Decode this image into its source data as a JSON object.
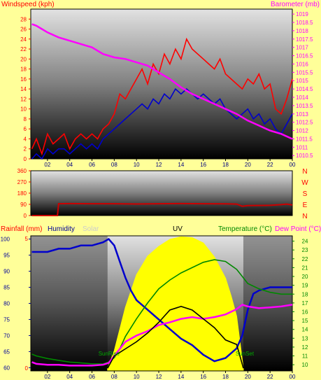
{
  "chart_data": [
    {
      "type": "line",
      "title": "",
      "title_color": "#ffff00",
      "left_label": "Windspeed (kph)",
      "right_label": "Barometer (mb)",
      "x_ticks": [
        "02",
        "04",
        "06",
        "08",
        "10",
        "12",
        "14",
        "16",
        "18",
        "20",
        "22",
        "00"
      ],
      "y_left_ticks": [
        0,
        2,
        4,
        6,
        8,
        10,
        12,
        14,
        16,
        18,
        20,
        22,
        24,
        26,
        28
      ],
      "y_left_range": [
        0,
        30
      ],
      "y_right_ticks": [
        "1010.5",
        "1011",
        "1011.5",
        "1012",
        "1012.5",
        "1013",
        "1013.5",
        "1014",
        "1014.5",
        "1015",
        "1015.5",
        "1016",
        "1016.5",
        "1017",
        "1017.5",
        "1018",
        "1018.5",
        "1019"
      ],
      "y_right_range": [
        1010.3,
        1019.3
      ],
      "x_range": [
        0.5,
        24
      ],
      "series": [
        {
          "key": "gust",
          "color": "#ff0000",
          "x": [
            0.6,
            1,
            1.5,
            2,
            2.5,
            3,
            3.5,
            4,
            4.5,
            5,
            5.5,
            6,
            6.5,
            7,
            7.5,
            8,
            8.5,
            9,
            9.5,
            10,
            10.5,
            11,
            11.5,
            12,
            12.5,
            13,
            13.5,
            14,
            14.5,
            15,
            15.5,
            16,
            16.5,
            17,
            17.5,
            18,
            18.5,
            19,
            19.5,
            20,
            20.5,
            21,
            21.5,
            22,
            22.5,
            23,
            23.5,
            24
          ],
          "y": [
            2,
            4,
            1,
            5,
            3,
            4,
            5,
            2,
            4,
            5,
            4,
            5,
            4,
            6,
            7,
            9,
            13,
            12,
            14,
            16,
            18,
            15,
            19,
            17,
            21,
            19,
            22,
            20,
            24,
            22,
            21,
            20,
            19,
            18,
            20,
            17,
            16,
            15,
            14,
            16,
            15,
            17,
            14,
            15,
            10,
            9,
            12,
            16
          ]
        },
        {
          "key": "avg",
          "color": "#0000cc",
          "x": [
            0.6,
            1,
            1.5,
            2,
            2.5,
            3,
            3.5,
            4,
            4.5,
            5,
            5.5,
            6,
            6.5,
            7,
            7.5,
            8,
            8.5,
            9,
            9.5,
            10,
            10.5,
            11,
            11.5,
            12,
            12.5,
            13,
            13.5,
            14,
            14.5,
            15,
            15.5,
            16,
            16.5,
            17,
            17.5,
            18,
            18.5,
            19,
            19.5,
            20,
            20.5,
            21,
            21.5,
            22,
            22.5,
            23,
            23.5,
            24
          ],
          "y": [
            0,
            1,
            0,
            2,
            1,
            2,
            2,
            1,
            2,
            3,
            2,
            3,
            2,
            4,
            5,
            6,
            7,
            8,
            9,
            10,
            11,
            10,
            12,
            11,
            13,
            12,
            14,
            13,
            14,
            13,
            12,
            13,
            12,
            11,
            12,
            10,
            9,
            8,
            9,
            10,
            8,
            9,
            7,
            8,
            6,
            5,
            7,
            9
          ]
        },
        {
          "key": "barometer",
          "axis": "right",
          "color": "#ff00ff",
          "x": [
            0.6,
            1,
            1.5,
            2,
            3,
            4,
            5,
            6,
            7,
            8,
            9,
            10,
            11,
            12,
            13,
            14,
            15,
            16,
            17,
            18,
            19,
            20,
            21,
            22,
            23,
            24
          ],
          "y": [
            1018.4,
            1018.3,
            1018.1,
            1017.9,
            1017.6,
            1017.4,
            1017.2,
            1017.0,
            1016.6,
            1016.4,
            1016.3,
            1016.1,
            1015.9,
            1015.5,
            1015.1,
            1014.6,
            1014.2,
            1013.9,
            1013.6,
            1013.3,
            1013.0,
            1012.6,
            1012.3,
            1012.0,
            1011.8,
            1011.5
          ]
        }
      ]
    },
    {
      "type": "line",
      "right_label": [
        "N",
        "W",
        "S",
        "E",
        "N"
      ],
      "y_ticks": [
        0,
        90,
        180,
        270,
        360
      ],
      "y_range": [
        0,
        360
      ],
      "x_range": [
        0.5,
        24
      ],
      "series": [
        {
          "key": "direction",
          "color": "#cc0000",
          "x": [
            0.6,
            1,
            2,
            2.9,
            3,
            4,
            6,
            8,
            10,
            12,
            14,
            16,
            18,
            19,
            19.5,
            20,
            22,
            23,
            23.5,
            24
          ],
          "y": [
            0,
            0,
            0,
            0,
            95,
            96,
            95,
            95,
            93,
            95,
            96,
            95,
            94,
            92,
            75,
            80,
            82,
            88,
            92,
            85
          ]
        }
      ]
    },
    {
      "type": "line",
      "labels": {
        "rainfall": "Rainfall (mm)",
        "humidity": "Humidity",
        "solar": "Solar",
        "uv": "UV",
        "temperature": "Temperature (°C)",
        "dewpoint": "Dew Point (°C)"
      },
      "colors": {
        "rainfall": "#ff0000",
        "humidity": "#000099",
        "solar": "#cccccc",
        "uv": "#000000",
        "temperature": "#009900",
        "dewpoint": "#ff00ff"
      },
      "sunrise_label": "SunRise",
      "sunset_label": "SunSet",
      "x_ticks": [
        "02",
        "04",
        "06",
        "08",
        "10",
        "12",
        "14",
        "16",
        "18",
        "20",
        "22",
        "00"
      ],
      "humidity_ticks": [
        60,
        65,
        70,
        75,
        80,
        85,
        90,
        95,
        100
      ],
      "humidity_range": [
        59,
        101
      ],
      "rain_ticks": [
        0,
        5
      ],
      "temp_ticks": [
        10,
        11,
        12,
        13,
        14,
        15,
        16,
        17,
        18,
        19,
        20,
        21,
        22,
        23,
        24
      ],
      "temp_range": [
        9.3,
        24.6
      ],
      "x_range": [
        0.5,
        24
      ],
      "sunrise_x": 7.4,
      "sunset_x": 19.6,
      "series": [
        {
          "key": "humidity",
          "color": "#0000cc",
          "x": [
            0.6,
            1,
            2,
            3,
            4,
            5,
            6,
            7,
            7.5,
            8,
            8.5,
            9,
            9.5,
            10,
            11,
            12,
            13,
            14,
            15,
            16,
            17,
            18,
            19,
            19.5,
            20,
            20.5,
            21,
            22,
            23,
            24
          ],
          "y": [
            96,
            96,
            96,
            97,
            97,
            98,
            98,
            99,
            100,
            98,
            93,
            88,
            84,
            81,
            78,
            75,
            72,
            69,
            67,
            64,
            62,
            63,
            66,
            70,
            78,
            83,
            84,
            85,
            85,
            85
          ]
        },
        {
          "key": "temperature",
          "axis": "right",
          "color": "#008800",
          "x": [
            0.6,
            1,
            2,
            3,
            4,
            5,
            6,
            7,
            7.5,
            8,
            8.5,
            9,
            10,
            11,
            12,
            13,
            14,
            15,
            16,
            17,
            18,
            19,
            19.5,
            20,
            21,
            22,
            23,
            24
          ],
          "y": [
            11.2,
            11.0,
            10.7,
            10.5,
            10.3,
            10.2,
            10.1,
            10.1,
            10.3,
            10.8,
            11.8,
            13.2,
            15.2,
            17.0,
            18.6,
            19.6,
            20.4,
            21.0,
            21.6,
            21.9,
            21.7,
            20.8,
            20.0,
            19.2,
            18.6,
            18.2,
            18.0,
            18.0
          ]
        },
        {
          "key": "dewpoint",
          "axis": "right",
          "color": "#ff00ff",
          "x": [
            0.6,
            1,
            2,
            3,
            4,
            5,
            6,
            7,
            7.5,
            8,
            9,
            10,
            11,
            12,
            13,
            14,
            15,
            16,
            17,
            18,
            19,
            19.5,
            20,
            21,
            22,
            23,
            24
          ],
          "y": [
            10.3,
            10.1,
            10.0,
            10.0,
            9.9,
            9.9,
            9.9,
            10.0,
            10.2,
            11.0,
            12.6,
            13.3,
            13.8,
            14.5,
            14.8,
            15.2,
            15.4,
            15.2,
            15.4,
            15.7,
            16.3,
            16.8,
            16.6,
            16.4,
            16.5,
            16.6,
            16.8
          ]
        },
        {
          "key": "uv",
          "axis": "right",
          "color": "#000000",
          "x": [
            7.4,
            8,
            9,
            10,
            11,
            12,
            13,
            14,
            15,
            16,
            17,
            18,
            19,
            19.6
          ],
          "y": [
            9.6,
            11.0,
            11.8,
            12.6,
            13.6,
            14.8,
            16.2,
            16.6,
            16.2,
            15.2,
            14.2,
            12.8,
            12.3,
            9.6
          ]
        },
        {
          "key": "solar",
          "axis": "right",
          "color": "#ffff00",
          "x": [
            7.4,
            8,
            9,
            10,
            11,
            12,
            13,
            14,
            15,
            16,
            17,
            18,
            18.5,
            19,
            19.6
          ],
          "y": [
            9.6,
            11.6,
            16.5,
            20.2,
            22.3,
            23.4,
            24.2,
            24.5,
            24.4,
            23.8,
            22.2,
            19.8,
            17.8,
            15.5,
            9.6
          ]
        }
      ]
    }
  ]
}
